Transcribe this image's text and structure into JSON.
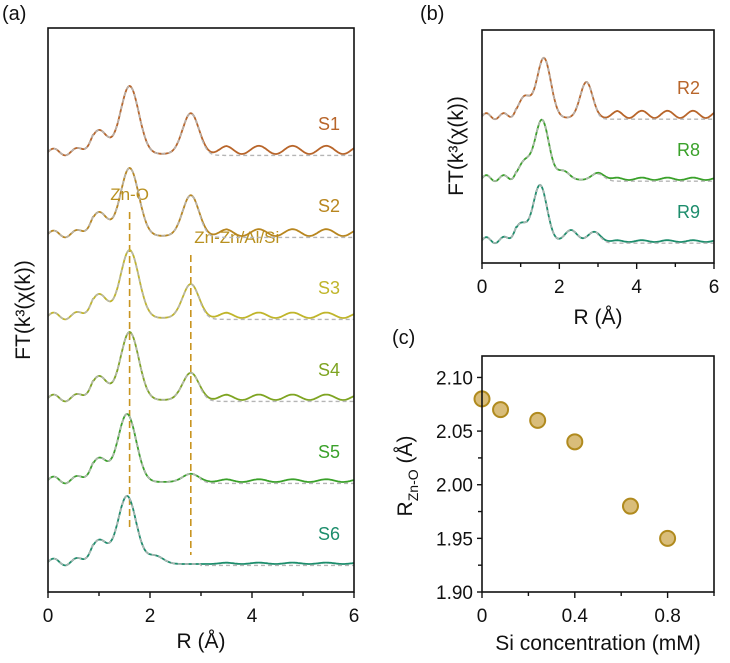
{
  "chart_data": [
    {
      "panel": "(a)",
      "type": "line",
      "title": "",
      "xlabel": "R (Å)",
      "ylabel": "FT(k³(χ(k))",
      "xlim": [
        0,
        6
      ],
      "xticks": [
        "0",
        "2",
        "4",
        "6"
      ],
      "yticks": [],
      "reference_lines": [
        {
          "label": "Zn-O",
          "x": 1.6
        },
        {
          "label": "Zn-Zn/Al/Si",
          "x": 2.8
        }
      ],
      "fit_style": "dashed grey",
      "series": [
        {
          "name": "S1",
          "color": "#b8652a",
          "offset": 5,
          "peaks": [
            [
              1.0,
              0.35
            ],
            [
              1.6,
              1.0
            ],
            [
              2.8,
              0.6
            ]
          ],
          "tail_wiggle": 0.12
        },
        {
          "name": "S2",
          "color": "#b8861f",
          "offset": 4,
          "peaks": [
            [
              1.0,
              0.35
            ],
            [
              1.6,
              1.0
            ],
            [
              2.8,
              0.6
            ]
          ],
          "tail_wiggle": 0.1
        },
        {
          "name": "S3",
          "color": "#c0b52a",
          "offset": 3,
          "peaks": [
            [
              1.0,
              0.35
            ],
            [
              1.6,
              1.0
            ],
            [
              2.8,
              0.5
            ]
          ],
          "tail_wiggle": 0.08
        },
        {
          "name": "S4",
          "color": "#7ea421",
          "offset": 2,
          "peaks": [
            [
              1.0,
              0.35
            ],
            [
              1.6,
              1.0
            ],
            [
              2.8,
              0.4
            ]
          ],
          "tail_wiggle": 0.08
        },
        {
          "name": "S5",
          "color": "#3aa12a",
          "offset": 1,
          "peaks": [
            [
              1.0,
              0.35
            ],
            [
              1.55,
              1.0
            ],
            [
              2.8,
              0.12
            ]
          ],
          "tail_wiggle": 0.04
        },
        {
          "name": "S6",
          "color": "#1d8d6c",
          "offset": 0,
          "peaks": [
            [
              1.0,
              0.35
            ],
            [
              1.55,
              1.0
            ],
            [
              2.1,
              0.12
            ]
          ],
          "tail_wiggle": 0.02
        }
      ]
    },
    {
      "panel": "(b)",
      "type": "line",
      "title": "",
      "xlabel": "R (Å)",
      "ylabel": "FT(k³(χ(k))",
      "xlim": [
        0,
        6
      ],
      "xticks": [
        "0",
        "2",
        "4",
        "6"
      ],
      "yticks": [],
      "fit_style": "dashed grey",
      "series": [
        {
          "name": "R2",
          "color": "#b8652a",
          "offset": 2,
          "peaks": [
            [
              1.1,
              0.35
            ],
            [
              1.6,
              1.0
            ],
            [
              2.7,
              0.6
            ]
          ],
          "tail_wiggle": 0.12
        },
        {
          "name": "R8",
          "color": "#3aa12a",
          "offset": 1,
          "peaks": [
            [
              1.1,
              0.3
            ],
            [
              1.55,
              1.0
            ],
            [
              2.1,
              0.15
            ],
            [
              3.0,
              0.12
            ]
          ],
          "tail_wiggle": 0.04
        },
        {
          "name": "R9",
          "color": "#1d8d6c",
          "offset": 0,
          "peaks": [
            [
              1.0,
              0.3
            ],
            [
              1.5,
              0.95
            ],
            [
              2.3,
              0.2
            ],
            [
              2.9,
              0.17
            ]
          ],
          "tail_wiggle": 0.03
        }
      ]
    },
    {
      "panel": "(c)",
      "type": "scatter",
      "title": "",
      "xlabel": "Si concentration (mM)",
      "ylabel": "R_Zn-O (Å)",
      "ylabel_main": "R",
      "ylabel_sub": "Zn-O",
      "ylabel_unit": " (Å)",
      "xlim": [
        0,
        1.0
      ],
      "ylim": [
        1.9,
        2.12
      ],
      "xticks": [
        "0",
        "0.4",
        "0.8"
      ],
      "yticks": [
        "1.90",
        "1.95",
        "2.00",
        "2.05",
        "2.10"
      ],
      "marker_color": "#d9bd7a",
      "marker_edge": "#b08a1e",
      "x": [
        0,
        0.08,
        0.24,
        0.4,
        0.64,
        0.8
      ],
      "y": [
        2.08,
        2.07,
        2.06,
        2.04,
        1.98,
        1.95
      ]
    }
  ]
}
